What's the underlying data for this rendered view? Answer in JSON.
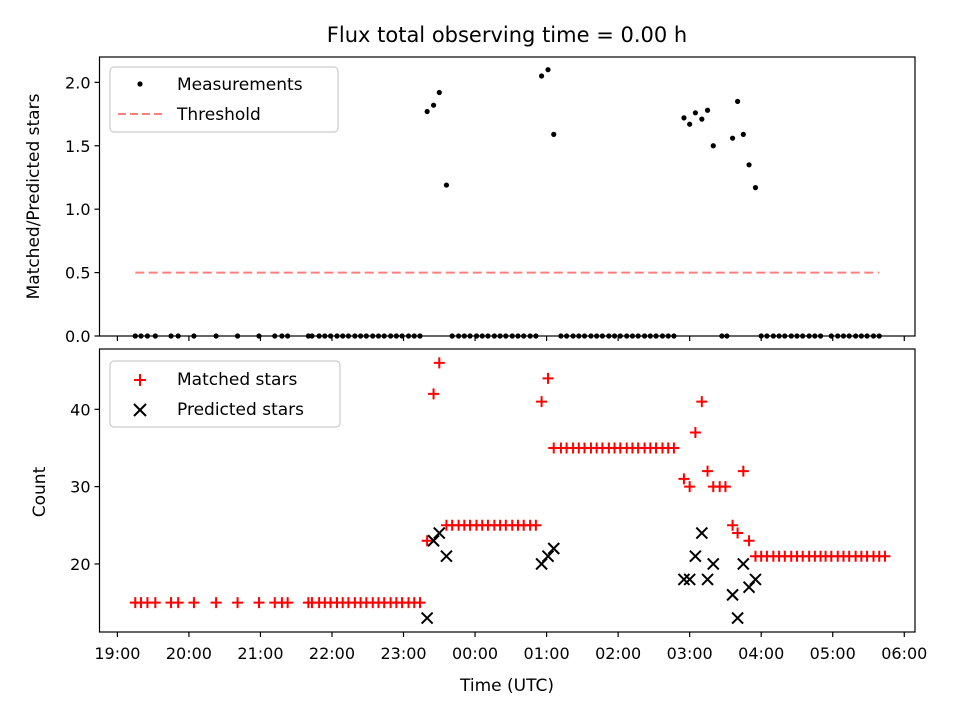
{
  "chart_data": [
    {
      "type": "scatter",
      "title": "Flux total observing time = 0.00 h",
      "xlabel": "",
      "ylabel": "Matched/Predicted stars",
      "xlim": [
        18.75,
        30.15
      ],
      "ylim": [
        0.0,
        2.2
      ],
      "yticks": [
        0.0,
        0.5,
        1.0,
        1.5,
        2.0
      ],
      "ytick_labels": [
        "0.0",
        "0.5",
        "1.0",
        "1.5",
        "2.0"
      ],
      "legend_position": "upper-left",
      "series": [
        {
          "name": "Measurements",
          "marker": "dot",
          "color": "#000000",
          "points": [
            [
              19.25,
              0
            ],
            [
              19.33,
              0
            ],
            [
              19.42,
              0
            ],
            [
              19.53,
              0
            ],
            [
              19.75,
              0
            ],
            [
              19.85,
              0
            ],
            [
              20.07,
              0
            ],
            [
              20.38,
              0
            ],
            [
              20.68,
              0
            ],
            [
              20.98,
              0
            ],
            [
              21.2,
              0
            ],
            [
              21.3,
              0
            ],
            [
              21.38,
              0
            ],
            [
              21.67,
              0
            ],
            [
              21.72,
              0
            ],
            [
              21.82,
              0
            ],
            [
              21.9,
              0
            ],
            [
              21.98,
              0
            ],
            [
              22.07,
              0
            ],
            [
              22.15,
              0
            ],
            [
              22.23,
              0
            ],
            [
              22.32,
              0
            ],
            [
              22.4,
              0
            ],
            [
              22.48,
              0
            ],
            [
              22.57,
              0
            ],
            [
              22.65,
              0
            ],
            [
              22.73,
              0
            ],
            [
              22.82,
              0
            ],
            [
              22.9,
              0
            ],
            [
              22.98,
              0
            ],
            [
              23.07,
              0
            ],
            [
              23.15,
              0
            ],
            [
              23.23,
              0
            ],
            [
              23.33,
              1.77
            ],
            [
              23.42,
              1.82
            ],
            [
              23.5,
              1.92
            ],
            [
              23.6,
              1.19
            ],
            [
              23.68,
              0
            ],
            [
              23.77,
              0
            ],
            [
              23.85,
              0
            ],
            [
              23.93,
              0
            ],
            [
              24.02,
              0
            ],
            [
              24.1,
              0
            ],
            [
              24.18,
              0
            ],
            [
              24.27,
              0
            ],
            [
              24.35,
              0
            ],
            [
              24.43,
              0
            ],
            [
              24.52,
              0
            ],
            [
              24.6,
              0
            ],
            [
              24.68,
              0
            ],
            [
              24.77,
              0
            ],
            [
              24.85,
              0
            ],
            [
              24.93,
              2.05
            ],
            [
              25.02,
              2.1
            ],
            [
              25.1,
              1.59
            ],
            [
              25.2,
              0
            ],
            [
              25.28,
              0
            ],
            [
              25.37,
              0
            ],
            [
              25.45,
              0
            ],
            [
              25.53,
              0
            ],
            [
              25.62,
              0
            ],
            [
              25.7,
              0
            ],
            [
              25.78,
              0
            ],
            [
              25.87,
              0
            ],
            [
              25.95,
              0
            ],
            [
              26.03,
              0
            ],
            [
              26.12,
              0
            ],
            [
              26.2,
              0
            ],
            [
              26.28,
              0
            ],
            [
              26.37,
              0
            ],
            [
              26.45,
              0
            ],
            [
              26.53,
              0
            ],
            [
              26.62,
              0
            ],
            [
              26.7,
              0
            ],
            [
              26.78,
              0
            ],
            [
              26.92,
              1.72
            ],
            [
              27.0,
              1.67
            ],
            [
              27.08,
              1.76
            ],
            [
              27.17,
              1.71
            ],
            [
              27.25,
              1.78
            ],
            [
              27.33,
              1.5
            ],
            [
              27.6,
              1.56
            ],
            [
              27.67,
              1.85
            ],
            [
              27.75,
              1.59
            ],
            [
              27.83,
              1.35
            ],
            [
              27.92,
              1.17
            ],
            [
              27.45,
              0
            ],
            [
              27.52,
              0
            ],
            [
              28.0,
              0
            ],
            [
              28.08,
              0
            ],
            [
              28.17,
              0
            ],
            [
              28.25,
              0
            ],
            [
              28.33,
              0
            ],
            [
              28.42,
              0
            ],
            [
              28.5,
              0
            ],
            [
              28.58,
              0
            ],
            [
              28.67,
              0
            ],
            [
              28.75,
              0
            ],
            [
              28.83,
              0
            ],
            [
              28.98,
              0
            ],
            [
              29.07,
              0
            ],
            [
              29.15,
              0
            ],
            [
              29.23,
              0
            ],
            [
              29.32,
              0
            ],
            [
              29.4,
              0
            ],
            [
              29.48,
              0
            ],
            [
              29.57,
              0
            ],
            [
              29.65,
              0
            ]
          ]
        },
        {
          "name": "Threshold",
          "marker": "dashed-line",
          "color": "#ff7f7f",
          "points": [
            [
              19.25,
              0.5
            ],
            [
              29.65,
              0.5
            ]
          ]
        }
      ]
    },
    {
      "type": "scatter",
      "title": "",
      "xlabel": "Time (UTC)",
      "ylabel": "Count",
      "xlim": [
        18.75,
        30.15
      ],
      "ylim": [
        11.2,
        47.8
      ],
      "yticks": [
        20,
        30,
        40
      ],
      "ytick_labels": [
        "20",
        "30",
        "40"
      ],
      "xticks": [
        19,
        20,
        21,
        22,
        23,
        24,
        25,
        26,
        27,
        28,
        29,
        30
      ],
      "xtick_labels": [
        "19:00",
        "20:00",
        "21:00",
        "22:00",
        "23:00",
        "00:00",
        "01:00",
        "02:00",
        "03:00",
        "04:00",
        "05:00",
        "06:00"
      ],
      "legend_position": "upper-left",
      "series": [
        {
          "name": "Matched stars",
          "marker": "plus",
          "color": "#ff0000",
          "points": [
            [
              19.25,
              15
            ],
            [
              19.33,
              15
            ],
            [
              19.42,
              15
            ],
            [
              19.53,
              15
            ],
            [
              19.75,
              15
            ],
            [
              19.85,
              15
            ],
            [
              20.07,
              15
            ],
            [
              20.38,
              15
            ],
            [
              20.68,
              15
            ],
            [
              20.98,
              15
            ],
            [
              21.2,
              15
            ],
            [
              21.3,
              15
            ],
            [
              21.38,
              15
            ],
            [
              21.67,
              15
            ],
            [
              21.72,
              15
            ],
            [
              21.82,
              15
            ],
            [
              21.9,
              15
            ],
            [
              21.98,
              15
            ],
            [
              22.07,
              15
            ],
            [
              22.15,
              15
            ],
            [
              22.23,
              15
            ],
            [
              22.32,
              15
            ],
            [
              22.4,
              15
            ],
            [
              22.48,
              15
            ],
            [
              22.57,
              15
            ],
            [
              22.65,
              15
            ],
            [
              22.73,
              15
            ],
            [
              22.82,
              15
            ],
            [
              22.9,
              15
            ],
            [
              22.98,
              15
            ],
            [
              23.07,
              15
            ],
            [
              23.15,
              15
            ],
            [
              23.23,
              15
            ],
            [
              23.33,
              23
            ],
            [
              23.42,
              42
            ],
            [
              23.5,
              46
            ],
            [
              23.6,
              25
            ],
            [
              23.68,
              25
            ],
            [
              23.77,
              25
            ],
            [
              23.85,
              25
            ],
            [
              23.93,
              25
            ],
            [
              24.02,
              25
            ],
            [
              24.1,
              25
            ],
            [
              24.18,
              25
            ],
            [
              24.27,
              25
            ],
            [
              24.35,
              25
            ],
            [
              24.43,
              25
            ],
            [
              24.52,
              25
            ],
            [
              24.6,
              25
            ],
            [
              24.68,
              25
            ],
            [
              24.77,
              25
            ],
            [
              24.85,
              25
            ],
            [
              24.93,
              41
            ],
            [
              25.02,
              44
            ],
            [
              25.1,
              35
            ],
            [
              25.2,
              35
            ],
            [
              25.28,
              35
            ],
            [
              25.37,
              35
            ],
            [
              25.45,
              35
            ],
            [
              25.53,
              35
            ],
            [
              25.62,
              35
            ],
            [
              25.7,
              35
            ],
            [
              25.78,
              35
            ],
            [
              25.87,
              35
            ],
            [
              25.95,
              35
            ],
            [
              26.03,
              35
            ],
            [
              26.12,
              35
            ],
            [
              26.2,
              35
            ],
            [
              26.28,
              35
            ],
            [
              26.37,
              35
            ],
            [
              26.45,
              35
            ],
            [
              26.53,
              35
            ],
            [
              26.62,
              35
            ],
            [
              26.7,
              35
            ],
            [
              26.78,
              35
            ],
            [
              26.92,
              31
            ],
            [
              27.0,
              30
            ],
            [
              27.08,
              37
            ],
            [
              27.17,
              41
            ],
            [
              27.25,
              32
            ],
            [
              27.33,
              30
            ],
            [
              27.42,
              30
            ],
            [
              27.5,
              30
            ],
            [
              27.6,
              25
            ],
            [
              27.67,
              24
            ],
            [
              27.75,
              32
            ],
            [
              27.83,
              23
            ],
            [
              27.92,
              21
            ],
            [
              28.0,
              21
            ],
            [
              28.08,
              21
            ],
            [
              28.17,
              21
            ],
            [
              28.25,
              21
            ],
            [
              28.33,
              21
            ],
            [
              28.42,
              21
            ],
            [
              28.5,
              21
            ],
            [
              28.58,
              21
            ],
            [
              28.67,
              21
            ],
            [
              28.75,
              21
            ],
            [
              28.83,
              21
            ],
            [
              28.9,
              21
            ],
            [
              28.98,
              21
            ],
            [
              29.07,
              21
            ],
            [
              29.15,
              21
            ],
            [
              29.23,
              21
            ],
            [
              29.32,
              21
            ],
            [
              29.4,
              21
            ],
            [
              29.48,
              21
            ],
            [
              29.57,
              21
            ],
            [
              29.65,
              21
            ],
            [
              29.73,
              21
            ]
          ]
        },
        {
          "name": "Predicted stars",
          "marker": "x",
          "color": "#000000",
          "points": [
            [
              23.33,
              13
            ],
            [
              23.42,
              23
            ],
            [
              23.5,
              24
            ],
            [
              23.6,
              21
            ],
            [
              24.93,
              20
            ],
            [
              25.02,
              21
            ],
            [
              25.1,
              22
            ],
            [
              26.92,
              18
            ],
            [
              27.0,
              18
            ],
            [
              27.08,
              21
            ],
            [
              27.17,
              24
            ],
            [
              27.25,
              18
            ],
            [
              27.33,
              20
            ],
            [
              27.6,
              16
            ],
            [
              27.67,
              13
            ],
            [
              27.75,
              20
            ],
            [
              27.83,
              17
            ],
            [
              27.92,
              18
            ]
          ]
        }
      ]
    }
  ]
}
